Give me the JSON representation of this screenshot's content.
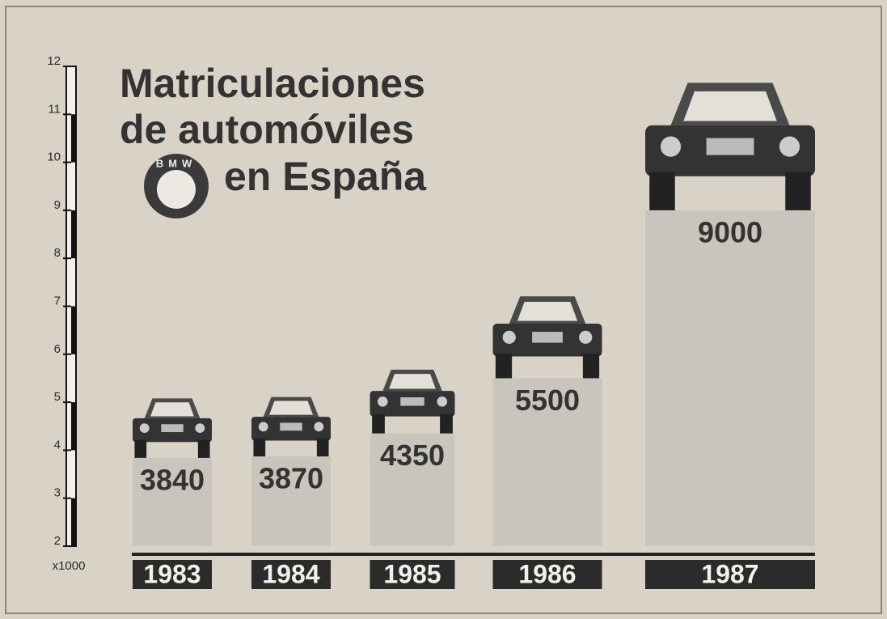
{
  "chart_data": {
    "type": "bar",
    "title": [
      "Matriculaciones",
      "de automóviles",
      "en España"
    ],
    "logo_text": "BMW",
    "categories": [
      "1983",
      "1984",
      "1985",
      "1986",
      "1987"
    ],
    "values": [
      3.84,
      3.87,
      4.35,
      5.5,
      9.0
    ],
    "value_labels": [
      "3840",
      "3870",
      "4350",
      "5500",
      "9000"
    ],
    "y_axis_label": "x1000",
    "ylim": [
      2,
      12
    ],
    "yticks": [
      2,
      3,
      4,
      5,
      6,
      7,
      8,
      9,
      10,
      11,
      12
    ],
    "color": "#c9c5bc"
  }
}
